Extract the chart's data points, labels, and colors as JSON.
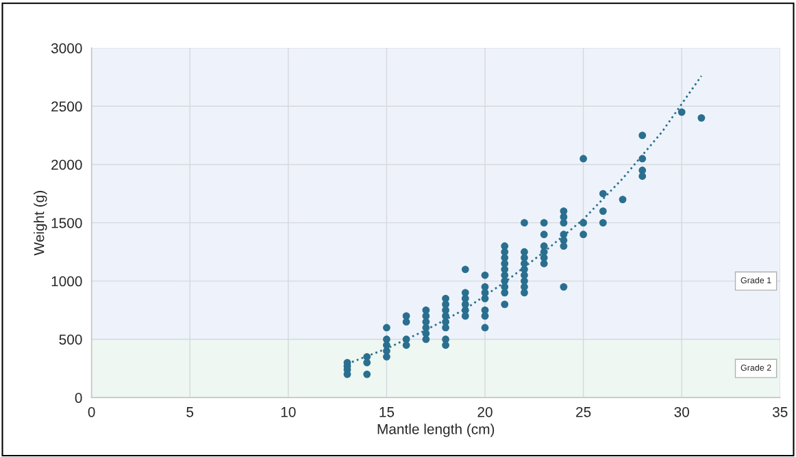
{
  "chart_data": {
    "type": "scatter",
    "xlabel": "Mantle length (cm)",
    "ylabel": "Weight (g)",
    "xlim": [
      0,
      35
    ],
    "xticks": [
      0,
      5,
      10,
      15,
      20,
      25,
      30,
      35
    ],
    "ylim": [
      0,
      3000
    ],
    "yticks": [
      0,
      500,
      1000,
      1500,
      2000,
      2500,
      3000
    ],
    "grid": true,
    "legend": false,
    "bands": [
      {
        "axis": "y",
        "from": 500,
        "to": 3000,
        "label": "Grade 1",
        "color": "#eef3fb"
      },
      {
        "axis": "y",
        "from": 0,
        "to": 500,
        "label": "Grade 2",
        "color": "#eef7f1"
      }
    ],
    "series": [
      {
        "color": "#2a6f8f",
        "marker": "circle",
        "x": [
          13,
          13,
          13,
          13,
          14,
          14,
          14,
          15,
          15,
          15,
          15,
          15,
          16,
          16,
          16,
          16,
          17,
          17,
          17,
          17,
          17,
          17,
          18,
          18,
          18,
          18,
          18,
          18,
          18,
          18,
          19,
          19,
          19,
          19,
          19,
          19,
          20,
          20,
          20,
          20,
          20,
          20,
          20,
          21,
          21,
          21,
          21,
          21,
          21,
          21,
          21,
          21,
          21,
          22,
          22,
          22,
          22,
          22,
          22,
          22,
          22,
          22,
          23,
          23,
          23,
          23,
          23,
          23,
          24,
          24,
          24,
          24,
          24,
          24,
          24,
          25,
          25,
          25,
          26,
          26,
          26,
          27,
          28,
          28,
          28,
          28,
          30,
          31
        ],
        "values": [
          300,
          270,
          240,
          200,
          350,
          300,
          200,
          600,
          500,
          450,
          400,
          350,
          700,
          650,
          500,
          450,
          750,
          700,
          650,
          600,
          550,
          500,
          850,
          800,
          750,
          700,
          650,
          600,
          500,
          450,
          1100,
          900,
          850,
          800,
          750,
          700,
          1050,
          950,
          900,
          850,
          750,
          700,
          600,
          1300,
          1250,
          1200,
          1150,
          1100,
          1050,
          1000,
          950,
          900,
          800,
          1500,
          1250,
          1200,
          1150,
          1100,
          1050,
          1000,
          950,
          900,
          1500,
          1400,
          1300,
          1250,
          1200,
          1150,
          1600,
          1550,
          1500,
          1400,
          1350,
          1300,
          950,
          2050,
          1500,
          1400,
          1750,
          1600,
          1500,
          1700,
          2250,
          2050,
          1950,
          1900,
          2450,
          2400
        ]
      },
      {
        "type": "line",
        "color": "#2a6f8f",
        "marker": "none",
        "line_style": "dotted",
        "x": [
          13,
          15,
          17,
          19,
          21,
          23,
          25,
          27,
          29,
          31
        ],
        "values": [
          290,
          420,
          580,
          760,
          990,
          1250,
          1530,
          1880,
          2280,
          2760
        ]
      }
    ]
  }
}
